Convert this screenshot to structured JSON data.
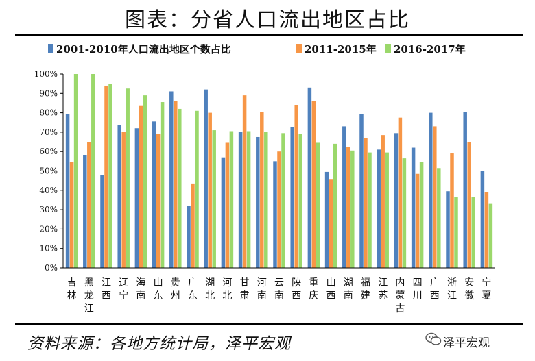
{
  "title": "图表：分省人口流出地区占比",
  "source": "资料来源：各地方统计局，泽平宏观",
  "watermark": "泽平宏观",
  "colors": {
    "s1": "#4f81bd",
    "s2": "#f79646",
    "s3": "#9bd86b",
    "axis": "#000000"
  },
  "chart_data": {
    "type": "bar",
    "ylim": [
      0,
      100
    ],
    "yticks": [
      "0%",
      "10%",
      "20%",
      "30%",
      "40%",
      "50%",
      "60%",
      "70%",
      "80%",
      "90%",
      "100%"
    ],
    "legend_position": "top",
    "grid": false,
    "categories": [
      "吉林",
      "黑龙江",
      "江西",
      "辽宁",
      "海南",
      "山东",
      "贵州",
      "广东",
      "湖北",
      "河北",
      "甘肃",
      "河南",
      "云南",
      "陕西",
      "重庆",
      "山西",
      "湖南",
      "福建",
      "江苏",
      "内蒙古",
      "四川",
      "广西",
      "浙江",
      "安徽",
      "宁夏"
    ],
    "series": [
      {
        "name": "2001-2010年人口流出地区个数占比",
        "values": [
          79.5,
          58,
          48,
          73.5,
          72,
          75.5,
          91,
          32,
          92,
          57,
          70,
          67.5,
          55,
          72.5,
          93,
          49.5,
          73,
          79.5,
          61,
          69.5,
          62,
          80,
          39.5,
          80.5,
          50
        ]
      },
      {
        "name": "2011-2015年",
        "values": [
          54.5,
          65,
          94,
          70,
          83.5,
          69,
          86,
          43.5,
          80,
          64.5,
          89,
          80.5,
          60,
          84,
          86,
          45.5,
          62.5,
          67,
          68.5,
          77.5,
          48.5,
          73,
          59,
          65,
          39
        ]
      },
      {
        "name": "2016-2017年",
        "values": [
          100,
          100,
          95,
          92.5,
          89,
          85.5,
          82,
          81,
          71,
          70.5,
          70.5,
          70,
          69.5,
          69,
          64.5,
          64,
          60.5,
          59.5,
          59.5,
          56.5,
          54.5,
          51.5,
          36.5,
          36.5,
          33
        ]
      }
    ]
  }
}
